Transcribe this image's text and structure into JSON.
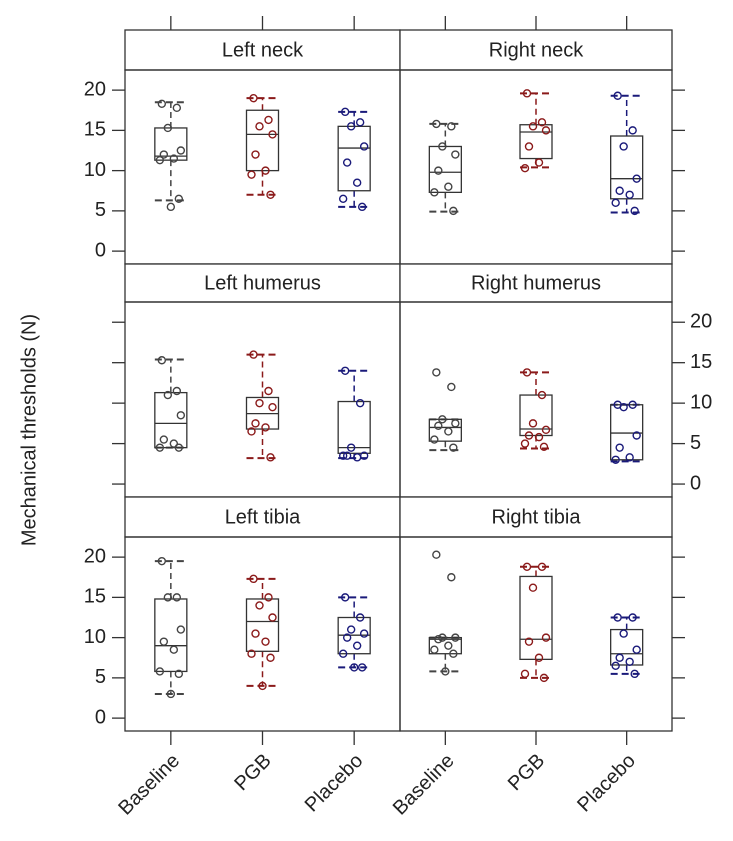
{
  "chart_data": {
    "type": "box",
    "ylabel": "Mechanical thresholds (N)",
    "ylim": [
      -1.6,
      22.5
    ],
    "yticks": [
      0,
      5,
      10,
      15,
      20
    ],
    "categories": [
      "Baseline",
      "PGB",
      "Placebo"
    ],
    "colors": [
      "#444444",
      "#8b1a1a",
      "#1a1a7a"
    ],
    "panels": [
      {
        "title": "Left neck",
        "boxes": [
          {
            "min": 6.3,
            "q1": 11.3,
            "median": 11.8,
            "q3": 15.3,
            "max": 18.5,
            "points": [
              18.3,
              17.8,
              15.3,
              12.5,
              12,
              11.5,
              11.3,
              6.5,
              5.5
            ]
          },
          {
            "min": 7,
            "q1": 10,
            "median": 14.5,
            "q3": 17.5,
            "max": 19,
            "points": [
              19,
              16.3,
              15.5,
              14.5,
              12,
              10,
              9.5,
              7
            ]
          },
          {
            "min": 5.5,
            "q1": 7.5,
            "median": 12.8,
            "q3": 15.5,
            "max": 17.3,
            "points": [
              17.3,
              16,
              15.5,
              13,
              11,
              8.5,
              6.5,
              5.5
            ]
          }
        ]
      },
      {
        "title": "Right neck",
        "boxes": [
          {
            "min": 4.9,
            "q1": 7.3,
            "median": 9.8,
            "q3": 13,
            "max": 15.8,
            "points": [
              15.8,
              15.5,
              13,
              12,
              10,
              8,
              7.3,
              5
            ]
          },
          {
            "min": 10.4,
            "q1": 11.5,
            "median": 14.8,
            "q3": 15.7,
            "max": 19.6,
            "points": [
              19.6,
              16,
              15.5,
              15,
              13,
              11,
              10.3
            ]
          },
          {
            "min": 4.8,
            "q1": 6.5,
            "median": 9,
            "q3": 14.3,
            "max": 19.3,
            "points": [
              19.3,
              15,
              13,
              9,
              7.5,
              7,
              6,
              5
            ]
          }
        ]
      },
      {
        "title": "Left humerus",
        "boxes": [
          {
            "min": 4.5,
            "q1": 4.5,
            "median": 7.5,
            "q3": 11.3,
            "max": 15.4,
            "points": [
              15.3,
              11.5,
              11,
              8.5,
              5.5,
              5,
              4.5,
              4.5
            ]
          },
          {
            "min": 3.2,
            "q1": 6.8,
            "median": 8.7,
            "q3": 10.7,
            "max": 16,
            "points": [
              16,
              11.5,
              10,
              9.5,
              7.5,
              7,
              6.5,
              3.3
            ]
          },
          {
            "min": 3.2,
            "q1": 3.8,
            "median": 4.5,
            "q3": 10.2,
            "max": 14,
            "points": [
              14,
              10,
              4.5,
              3.5,
              3.5,
              3.3,
              3.5
            ]
          }
        ]
      },
      {
        "title": "Right humerus",
        "boxes": [
          {
            "min": 4.2,
            "q1": 5.3,
            "median": 7,
            "q3": 8,
            "max": 8,
            "points": [
              13.8,
              12,
              8,
              7.5,
              7.2,
              6.5,
              5.5,
              4.5
            ]
          },
          {
            "min": 4.4,
            "q1": 6,
            "median": 6.8,
            "q3": 11,
            "max": 13.8,
            "points": [
              13.8,
              11,
              7.5,
              6.7,
              6,
              5.8,
              5,
              4.6
            ]
          },
          {
            "min": 2.8,
            "q1": 3,
            "median": 6.3,
            "q3": 9.8,
            "max": 9.8,
            "points": [
              9.8,
              9.8,
              9.5,
              6,
              4.5,
              3.3,
              3
            ]
          }
        ]
      },
      {
        "title": "Left tibia",
        "boxes": [
          {
            "min": 3,
            "q1": 5.8,
            "median": 9,
            "q3": 14.8,
            "max": 19.5,
            "points": [
              19.5,
              15,
              15,
              11,
              9.5,
              8.5,
              5.8,
              5.5,
              3
            ]
          },
          {
            "min": 4,
            "q1": 8.3,
            "median": 12,
            "q3": 14.8,
            "max": 17.3,
            "points": [
              17.3,
              15,
              14,
              12.5,
              10.5,
              9.5,
              8,
              7.5,
              4
            ]
          },
          {
            "min": 6.3,
            "q1": 8,
            "median": 10.3,
            "q3": 12.5,
            "max": 15,
            "points": [
              15,
              12.5,
              11,
              10.5,
              10,
              9,
              8,
              6.3,
              6.3
            ]
          }
        ]
      },
      {
        "title": "Right tibia",
        "boxes": [
          {
            "min": 5.8,
            "q1": 8,
            "median": 9.8,
            "q3": 10,
            "max": 10,
            "points": [
              20.3,
              17.5,
              10,
              10,
              9.8,
              9,
              8.5,
              8,
              5.8
            ]
          },
          {
            "min": 5,
            "q1": 7.3,
            "median": 9.8,
            "q3": 17.6,
            "max": 18.8,
            "points": [
              18.8,
              18.8,
              16.2,
              10,
              9.5,
              7.5,
              5.5,
              5
            ]
          },
          {
            "min": 5.5,
            "q1": 6.6,
            "median": 8,
            "q3": 11,
            "max": 12.5,
            "points": [
              12.5,
              12.5,
              10.5,
              8.5,
              7.5,
              7,
              6.5,
              5.5
            ]
          }
        ]
      }
    ]
  }
}
